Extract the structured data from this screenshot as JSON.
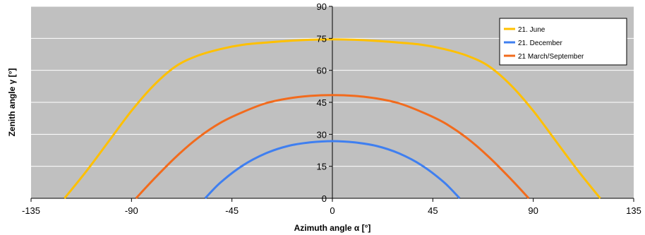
{
  "chart_data": {
    "type": "line",
    "xlabel": "Azimuth angle α [°]",
    "ylabel": "Zenith angle γ [°]",
    "xlim": [
      -135,
      135
    ],
    "ylim": [
      0,
      90
    ],
    "xticks": [
      "-135",
      "-90",
      "-45",
      "0",
      "45",
      "90",
      "135"
    ],
    "yticks": [
      "0",
      "15",
      "30",
      "45",
      "60",
      "75",
      "90"
    ],
    "grid": "horizontal",
    "legend_position": "top-right",
    "series": [
      {
        "name": "21. June",
        "color": "#ffc000",
        "x": [
          -120,
          -110,
          -100,
          -90,
          -80,
          -70,
          -60,
          -50,
          -40,
          -30,
          -20,
          -10,
          0,
          10,
          20,
          30,
          40,
          50,
          60,
          70,
          80,
          90,
          100,
          110,
          120
        ],
        "y": [
          0,
          13,
          27,
          41,
          53,
          62,
          67,
          70,
          72,
          73,
          73.8,
          74.3,
          74.5,
          74.3,
          73.8,
          73,
          72,
          70,
          67,
          62,
          53,
          41,
          27,
          13,
          0
        ]
      },
      {
        "name": "21. December",
        "color": "#3f7ff0",
        "x": [
          -57,
          -50,
          -40,
          -30,
          -20,
          -10,
          0,
          10,
          20,
          30,
          40,
          50,
          57
        ],
        "y": [
          0,
          7.5,
          15.5,
          21,
          24.5,
          26.2,
          26.8,
          26.2,
          24.5,
          21,
          15.5,
          7.5,
          0
        ]
      },
      {
        "name": "21 March/September",
        "color": "#f26b1d",
        "x": [
          -88,
          -80,
          -70,
          -60,
          -50,
          -40,
          -30,
          -20,
          -10,
          0,
          10,
          20,
          30,
          40,
          50,
          60,
          70,
          80,
          88
        ],
        "y": [
          0,
          9,
          19.5,
          28.5,
          35.5,
          40.5,
          44.5,
          46.8,
          48,
          48.4,
          48,
          46.8,
          44.5,
          40.5,
          35.5,
          28.5,
          19.5,
          9,
          0
        ]
      }
    ]
  }
}
